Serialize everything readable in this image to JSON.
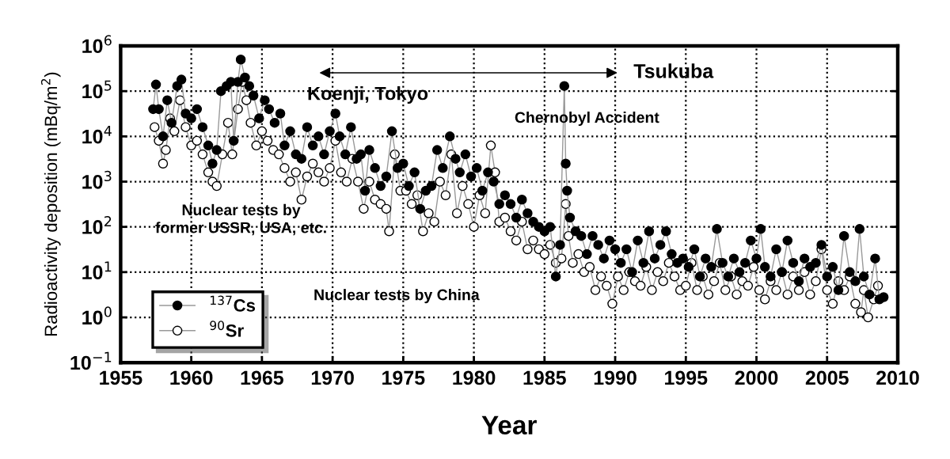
{
  "chart_data": {
    "type": "line",
    "xlabel": "Year",
    "ylabel": "Radioactivity deposition (mBq/m$^{2}$)",
    "log": "y",
    "grid": true,
    "legend": "bottom left",
    "marker": "circle",
    "xlim": [
      1955,
      2010
    ],
    "xticks": [
      1955,
      1960,
      1965,
      1970,
      1975,
      1980,
      1985,
      1990,
      1995,
      2000,
      2005,
      2010
    ],
    "ylim": [
      0.1,
      1000000
    ],
    "yticks": [
      {
        "value": 0.1,
        "label": "10$^{−1}$"
      },
      {
        "value": 1,
        "label": "10$^{0}$"
      },
      {
        "value": 10,
        "label": "10$^{1}$"
      },
      {
        "value": 100,
        "label": "10$^{2}$"
      },
      {
        "value": 1000,
        "label": "10$^{3}$"
      },
      {
        "value": 10000,
        "label": "10$^{4}$"
      },
      {
        "value": 100000,
        "label": "10$^{5}$"
      },
      {
        "value": 1000000,
        "label": "10$^{6}$"
      }
    ],
    "annotations": [
      "Koenji, Tokyo",
      "Tsukuba",
      "Chernobyl Accident",
      "Nuclear tests by\nformer USSR, USA, etc.",
      "Nuclear tests by China"
    ],
    "series": [
      {
        "name": "$^{137}$Cs",
        "color": "#000000",
        "x": [
          1957.3,
          1957.5,
          1957.7,
          1958.0,
          1958.3,
          1958.6,
          1959.0,
          1959.3,
          1959.6,
          1960.0,
          1960.4,
          1960.8,
          1961.2,
          1961.5,
          1961.8,
          1962.1,
          1962.5,
          1962.8,
          1963.0,
          1963.3,
          1963.5,
          1963.8,
          1964.1,
          1964.4,
          1964.8,
          1965.2,
          1965.5,
          1965.9,
          1966.3,
          1966.6,
          1967.0,
          1967.4,
          1967.8,
          1968.2,
          1968.6,
          1969.0,
          1969.4,
          1969.8,
          1970.2,
          1970.5,
          1970.9,
          1971.3,
          1971.7,
          1972.0,
          1972.3,
          1972.6,
          1973.0,
          1973.4,
          1973.8,
          1974.2,
          1974.6,
          1975.0,
          1975.4,
          1975.8,
          1976.2,
          1976.6,
          1977.0,
          1977.4,
          1977.8,
          1978.3,
          1978.7,
          1979.0,
          1979.4,
          1979.8,
          1980.2,
          1980.6,
          1981.0,
          1981.4,
          1981.8,
          1982.2,
          1982.6,
          1983.0,
          1983.4,
          1983.8,
          1984.2,
          1984.6,
          1985.0,
          1985.4,
          1985.8,
          1986.1,
          1986.4,
          1986.5,
          1986.6,
          1986.8,
          1987.2,
          1987.6,
          1988.0,
          1988.4,
          1988.8,
          1989.2,
          1989.6,
          1990.0,
          1990.4,
          1990.8,
          1991.2,
          1991.6,
          1992.0,
          1992.4,
          1992.8,
          1993.2,
          1993.6,
          1994.0,
          1994.4,
          1994.8,
          1995.2,
          1995.6,
          1996.0,
          1996.4,
          1996.8,
          1997.2,
          1997.6,
          1998.0,
          1998.4,
          1998.8,
          1999.2,
          1999.6,
          2000.0,
          2000.3,
          2000.6,
          2001.0,
          2001.4,
          2001.8,
          2002.2,
          2002.6,
          2003.0,
          2003.4,
          2003.8,
          2004.2,
          2004.6,
          2005.0,
          2005.4,
          2005.8,
          2006.2,
          2006.6,
          2007.0,
          2007.3,
          2007.6,
          2008.0,
          2008.4,
          2008.7,
          2009.0
        ],
        "values": [
          40000,
          140000,
          40000,
          10000,
          63000,
          20000,
          130000,
          180000,
          32000,
          25000,
          40000,
          16000,
          6300,
          2500,
          5000,
          100000,
          130000,
          160000,
          8000,
          160000,
          500000,
          200000,
          130000,
          80000,
          25000,
          63000,
          40000,
          20000,
          32000,
          6300,
          13000,
          4000,
          3200,
          16000,
          6300,
          10000,
          4000,
          13000,
          32000,
          10000,
          4000,
          16000,
          3200,
          4000,
          630,
          5000,
          2000,
          800,
          1300,
          13000,
          2000,
          2500,
          800,
          1600,
          250,
          630,
          800,
          5000,
          2000,
          10000,
          3200,
          1600,
          4000,
          1300,
          2000,
          630,
          1600,
          1000,
          320,
          500,
          320,
          160,
          400,
          200,
          130,
          100,
          80,
          100,
          8,
          40,
          130000,
          2500,
          630,
          160,
          80,
          63,
          25,
          63,
          40,
          20,
          50,
          32,
          16,
          32,
          10,
          50,
          16,
          80,
          20,
          40,
          80,
          25,
          16,
          20,
          13,
          32,
          8,
          20,
          13,
          90,
          16,
          8,
          20,
          10,
          16,
          50,
          20,
          90,
          13,
          8,
          32,
          10,
          50,
          16,
          6.3,
          20,
          13,
          16,
          40,
          8,
          13,
          4,
          63,
          10,
          6.3,
          90,
          8,
          3.2,
          20,
          2.5,
          2.8
        ]
      },
      {
        "name": "$^{90}$Sr",
        "color": "#ffffff",
        "x": [
          1957.4,
          1957.7,
          1958.0,
          1958.2,
          1958.5,
          1958.8,
          1959.2,
          1959.6,
          1960.0,
          1960.4,
          1960.8,
          1961.2,
          1961.5,
          1961.8,
          1962.2,
          1962.6,
          1962.9,
          1963.3,
          1963.6,
          1963.9,
          1964.2,
          1964.6,
          1965.0,
          1965.4,
          1965.8,
          1966.2,
          1966.6,
          1967.0,
          1967.4,
          1967.8,
          1968.2,
          1968.6,
          1969.0,
          1969.4,
          1969.8,
          1970.2,
          1970.6,
          1971.0,
          1971.4,
          1971.8,
          1972.2,
          1972.6,
          1973.0,
          1973.4,
          1973.8,
          1974.0,
          1974.4,
          1974.8,
          1975.2,
          1975.6,
          1976.0,
          1976.4,
          1976.8,
          1977.2,
          1977.6,
          1978.0,
          1978.4,
          1978.8,
          1979.2,
          1979.6,
          1980.0,
          1980.4,
          1980.8,
          1981.2,
          1981.5,
          1981.8,
          1982.2,
          1982.6,
          1983.0,
          1983.4,
          1983.8,
          1984.2,
          1984.6,
          1985.0,
          1985.4,
          1985.8,
          1986.2,
          1986.5,
          1986.7,
          1987.0,
          1987.4,
          1987.8,
          1988.2,
          1988.6,
          1989.0,
          1989.4,
          1989.8,
          1990.2,
          1990.6,
          1991.0,
          1991.4,
          1991.8,
          1992.2,
          1992.6,
          1993.0,
          1993.4,
          1993.8,
          1994.2,
          1994.6,
          1995.0,
          1995.4,
          1995.8,
          1996.2,
          1996.6,
          1997.0,
          1997.4,
          1997.8,
          1998.2,
          1998.6,
          1999.0,
          1999.4,
          1999.8,
          2000.2,
          2000.6,
          2001.0,
          2001.4,
          2001.8,
          2002.2,
          2002.6,
          2003.0,
          2003.4,
          2003.8,
          2004.2,
          2004.6,
          2005.0,
          2005.4,
          2005.8,
          2006.2,
          2006.6,
          2007.0,
          2007.4,
          2007.6,
          2007.9,
          2008.3,
          2008.6
        ],
        "values": [
          16000,
          8000,
          2500,
          5000,
          25000,
          13000,
          63000,
          16000,
          6300,
          8000,
          4000,
          1600,
          1000,
          800,
          4000,
          20000,
          4000,
          40000,
          160000,
          63000,
          20000,
          6300,
          13000,
          8000,
          5000,
          4000,
          2000,
          1000,
          1600,
          400,
          1300,
          2500,
          1600,
          1000,
          2000,
          8000,
          1600,
          1000,
          3200,
          1000,
          250,
          1000,
          400,
          320,
          250,
          80,
          4000,
          630,
          630,
          320,
          500,
          80,
          200,
          130,
          1000,
          500,
          4000,
          200,
          800,
          320,
          100,
          500,
          200,
          6300,
          1600,
          130,
          160,
          80,
          50,
          130,
          32,
          50,
          32,
          25,
          40,
          16,
          20,
          320,
          63,
          16,
          25,
          10,
          13,
          4,
          8,
          5,
          2,
          8,
          4,
          10,
          6.3,
          5,
          13,
          4,
          10,
          6.3,
          16,
          8,
          4,
          5,
          16,
          4,
          8,
          3.2,
          6.3,
          16,
          4,
          8,
          3.2,
          6.3,
          5,
          13,
          4,
          2.5,
          6.3,
          4,
          10,
          3.2,
          8,
          4,
          10,
          3.2,
          6.3,
          32,
          4,
          2,
          6.3,
          4,
          8,
          2,
          1.3,
          4,
          1,
          2.5,
          5
        ]
      }
    ]
  }
}
